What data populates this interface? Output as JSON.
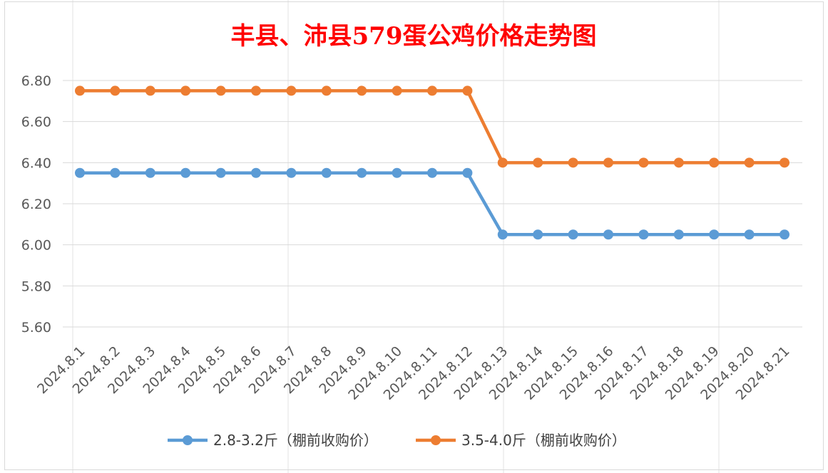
{
  "chart_data": {
    "type": "line",
    "title": "丰县、沛县579蛋公鸡价格走势图",
    "title_color": "#ff0000",
    "categories": [
      "2024.8.1",
      "2024.8.2",
      "2024.8.3",
      "2024.8.4",
      "2024.8.5",
      "2024.8.6",
      "2024.8.7",
      "2024.8.8",
      "2024.8.9",
      "2024.8.10",
      "2024.8.11",
      "2024.8.12",
      "2024.8.13",
      "2024.8.14",
      "2024.8.15",
      "2024.8.16",
      "2024.8.17",
      "2024.8.18",
      "2024.8.19",
      "2024.8.20",
      "2024.8.21"
    ],
    "series": [
      {
        "name": "2.8-3.2斤（棚前收购价）",
        "color": "#5b9bd5",
        "values": [
          6.35,
          6.35,
          6.35,
          6.35,
          6.35,
          6.35,
          6.35,
          6.35,
          6.35,
          6.35,
          6.35,
          6.35,
          6.05,
          6.05,
          6.05,
          6.05,
          6.05,
          6.05,
          6.05,
          6.05,
          6.05
        ]
      },
      {
        "name": "3.5-4.0斤（棚前收购价）",
        "color": "#ed7d31",
        "values": [
          6.75,
          6.75,
          6.75,
          6.75,
          6.75,
          6.75,
          6.75,
          6.75,
          6.75,
          6.75,
          6.75,
          6.75,
          6.4,
          6.4,
          6.4,
          6.4,
          6.4,
          6.4,
          6.4,
          6.4,
          6.4
        ]
      }
    ],
    "y_ticks": [
      "6.80",
      "6.60",
      "6.40",
      "6.20",
      "6.00",
      "5.80",
      "5.60"
    ],
    "ylim": [
      5.6,
      6.8
    ],
    "grid": true,
    "legend_position": "bottom"
  }
}
